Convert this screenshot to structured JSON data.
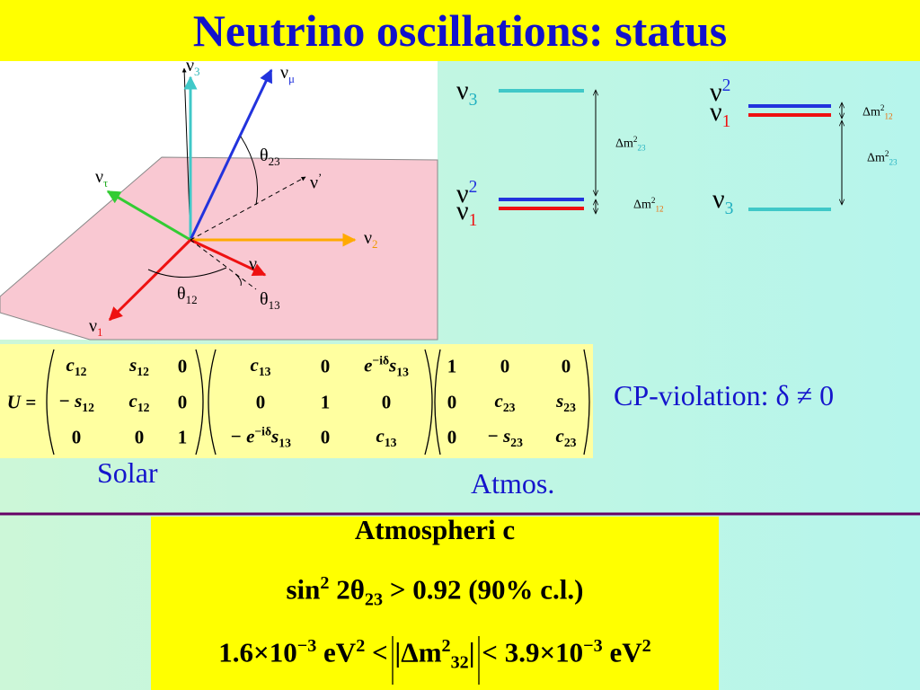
{
  "title": "Neutrino oscillations: status",
  "diagram": {
    "labels": [
      [
        {
          "text": "ν"
        },
        {
          "sub": "3",
          "color": "#30b8b8"
        }
      ],
      [
        {
          "text": "ν"
        },
        {
          "sub": "μ",
          "color": "#2233dd"
        }
      ],
      [
        {
          "text": "θ"
        },
        {
          "sub": "23"
        }
      ],
      [
        {
          "text": "ν"
        },
        {
          "sup": "’"
        }
      ],
      [
        {
          "text": "ν"
        },
        {
          "sub": "τ",
          "color": "#22aa22"
        }
      ],
      [
        {
          "text": "ν"
        },
        {
          "sub": "2",
          "color": "#ee9900"
        }
      ],
      [
        {
          "text": "ν"
        },
        {
          "sub": "e",
          "color": "#ee1111"
        }
      ],
      [
        {
          "text": "θ"
        },
        {
          "sub": "12"
        }
      ],
      [
        {
          "text": "θ"
        },
        {
          "sub": "13"
        }
      ],
      [
        {
          "text": "ν"
        },
        {
          "sub": "1",
          "color": "#ee1111"
        }
      ]
    ]
  },
  "mass": {
    "labels": [
      [
        {
          "text": "ν"
        },
        {
          "sub": "3",
          "color": "#20b0c0"
        }
      ],
      [
        {
          "text": "ν"
        },
        {
          "sup": "2",
          "color": "#2233dd"
        }
      ],
      [
        {
          "text": "ν"
        },
        {
          "sub": "1",
          "color": "#ee1111"
        }
      ],
      [
        {
          "text": "Δm"
        },
        {
          "sup": "2"
        },
        {
          "sub": "23",
          "color": "#20b0c0"
        }
      ],
      [
        {
          "text": "Δm"
        },
        {
          "sup": "2"
        },
        {
          "sub": "12",
          "color": "#ee6600"
        }
      ],
      [
        {
          "text": "ν"
        },
        {
          "sup": "2",
          "color": "#2233dd"
        }
      ],
      [
        {
          "text": "ν"
        },
        {
          "sub": "1",
          "color": "#ee1111"
        }
      ],
      [
        {
          "text": "ν"
        },
        {
          "sub": "3",
          "color": "#20b0c0"
        }
      ],
      [
        {
          "text": "Δm"
        },
        {
          "sup": "2"
        },
        {
          "sub": "12",
          "color": "#ee6600"
        }
      ],
      [
        {
          "text": "Δm"
        },
        {
          "sup": "2"
        },
        {
          "sub": "23",
          "color": "#20b0c0"
        }
      ]
    ]
  },
  "matrix": {
    "lhs": "U =",
    "matrices": [
      [
        [
          [
            {
              "text": "c"
            },
            {
              "sub": "12"
            }
          ],
          [
            {
              "text": "s"
            },
            {
              "sub": "12"
            }
          ],
          [
            {
              "text": "0"
            }
          ]
        ],
        [
          [
            {
              "text": "− s"
            },
            {
              "sub": "12"
            }
          ],
          [
            {
              "text": "c"
            },
            {
              "sub": "12"
            }
          ],
          [
            {
              "text": "0"
            }
          ]
        ],
        [
          [
            {
              "text": "0"
            }
          ],
          [
            {
              "text": "0"
            }
          ],
          [
            {
              "text": "1"
            }
          ]
        ]
      ],
      [
        [
          [
            {
              "text": "c"
            },
            {
              "sub": "13"
            }
          ],
          [
            {
              "text": "0"
            }
          ],
          [
            {
              "text": "e"
            },
            {
              "sup": "−iδ"
            },
            {
              "text": "s"
            },
            {
              "sub": "13"
            }
          ]
        ],
        [
          [
            {
              "text": "0"
            }
          ],
          [
            {
              "text": "1"
            }
          ],
          [
            {
              "text": "0"
            }
          ]
        ],
        [
          [
            {
              "text": "− e"
            },
            {
              "sup": "−iδ"
            },
            {
              "text": "s"
            },
            {
              "sub": "13"
            }
          ],
          [
            {
              "text": "0"
            }
          ],
          [
            {
              "text": "c"
            },
            {
              "sub": "13"
            }
          ]
        ]
      ],
      [
        [
          [
            {
              "text": "1"
            }
          ],
          [
            {
              "text": "0"
            }
          ],
          [
            {
              "text": "0"
            }
          ]
        ],
        [
          [
            {
              "text": "0"
            }
          ],
          [
            {
              "text": "c"
            },
            {
              "sub": "23"
            }
          ],
          [
            {
              "text": "s"
            },
            {
              "sub": "23"
            }
          ]
        ],
        [
          [
            {
              "text": "0"
            }
          ],
          [
            {
              "text": "− s"
            },
            {
              "sub": "23"
            }
          ],
          [
            {
              "text": "c"
            },
            {
              "sub": "23"
            }
          ]
        ]
      ]
    ]
  },
  "cp": "CP-violation: δ ≠ 0",
  "solar": "Solar",
  "atmos": "Atmos.",
  "box": {
    "lines": [
      [
        {
          "text": "Atmospheri c"
        }
      ],
      [
        {
          "text": "sin"
        },
        {
          "sup": "2"
        },
        {
          "text": " 2θ"
        },
        {
          "sub": "23"
        },
        {
          "text": " > 0.92 (90% c.l.)"
        }
      ],
      [
        {
          "text": "1.6×10"
        },
        {
          "sup": "−3"
        },
        {
          "text": " eV"
        },
        {
          "sup": "2"
        },
        {
          "text": " < |Δm"
        },
        {
          "sup": "2"
        },
        {
          "sub": "32"
        },
        {
          "text": "| < 3.9×10"
        },
        {
          "sup": "−3"
        },
        {
          "text": " eV"
        },
        {
          "sup": "2"
        }
      ]
    ]
  }
}
